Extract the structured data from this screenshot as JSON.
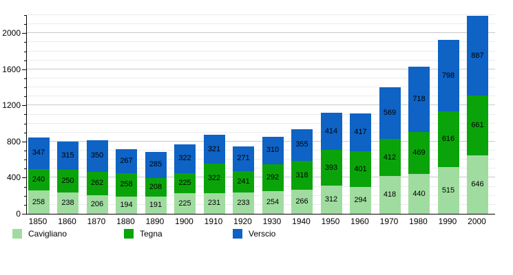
{
  "chart_data": {
    "type": "bar",
    "stacked": true,
    "title": "",
    "xlabel": "",
    "ylabel": "",
    "categories": [
      "1850",
      "1860",
      "1870",
      "1880",
      "1890",
      "1900",
      "1910",
      "1920",
      "1930",
      "1940",
      "1950",
      "1960",
      "1970",
      "1980",
      "1990",
      "2000"
    ],
    "series": [
      {
        "name": "Cavigliano",
        "color": "#a0dca0",
        "values": [
          258,
          238,
          206,
          194,
          191,
          225,
          231,
          233,
          254,
          266,
          312,
          294,
          418,
          440,
          515,
          646
        ]
      },
      {
        "name": "Tegna",
        "color": "#0aa40a",
        "values": [
          240,
          250,
          262,
          258,
          208,
          225,
          322,
          241,
          292,
          318,
          393,
          401,
          412,
          469,
          616,
          661
        ]
      },
      {
        "name": "Verscio",
        "color": "#0e63c5",
        "values": [
          347,
          315,
          350,
          267,
          285,
          322,
          321,
          271,
          310,
          355,
          414,
          417,
          569,
          718,
          798,
          887
        ]
      }
    ],
    "ylim": [
      0,
      2200
    ],
    "yticks": [
      0,
      400,
      800,
      1200,
      1600,
      2000
    ],
    "minor_grid_step": 100,
    "grid": true,
    "legend_position": "bottom",
    "value_labels": true
  },
  "colors": {
    "background": "#ffffff",
    "axis": "#000000",
    "grid_minor": "#ebebeb",
    "grid_major": "#c8c8c8",
    "label_text": "#000000"
  }
}
